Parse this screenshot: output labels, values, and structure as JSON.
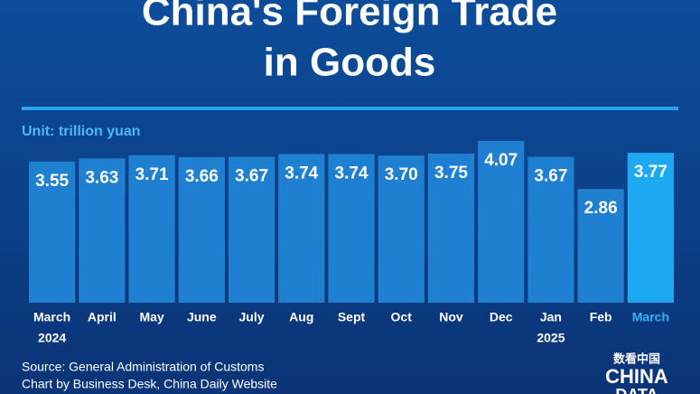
{
  "chart_data": {
    "type": "bar",
    "title_lines": [
      "China's Foreign Trade",
      "in Goods"
    ],
    "unit_label": "Unit: trillion yuan",
    "categories": [
      "March",
      "April",
      "May",
      "June",
      "July",
      "Aug",
      "Sept",
      "Oct",
      "Nov",
      "Dec",
      "Jan",
      "Feb",
      "March"
    ],
    "year_labels": [
      "2024",
      "2025"
    ],
    "values": [
      3.55,
      3.63,
      3.71,
      3.66,
      3.67,
      3.74,
      3.74,
      3.7,
      3.75,
      4.07,
      3.67,
      2.86,
      3.77
    ],
    "value_labels": [
      "3.55",
      "3.63",
      "3.71",
      "3.66",
      "3.67",
      "3.74",
      "3.74",
      "3.70",
      "3.75",
      "4.07",
      "3.67",
      "2.86",
      "3.77"
    ],
    "colors": [
      "#1f7fd1",
      "#1f7fd1",
      "#1f7fd1",
      "#1f7fd1",
      "#1f7fd1",
      "#1f7fd1",
      "#1f7fd1",
      "#1f7fd1",
      "#1f7fd1",
      "#1f7fd1",
      "#1f7fd1",
      "#1f7fd1",
      "#1eaaf3"
    ],
    "ylim": [
      0,
      4.5
    ],
    "source_lines": [
      "Source: General Administration of Customs",
      "Chart by Business Desk, China Daily Website"
    ],
    "logo": [
      "数看中国",
      "CHINA",
      "DATA"
    ]
  }
}
